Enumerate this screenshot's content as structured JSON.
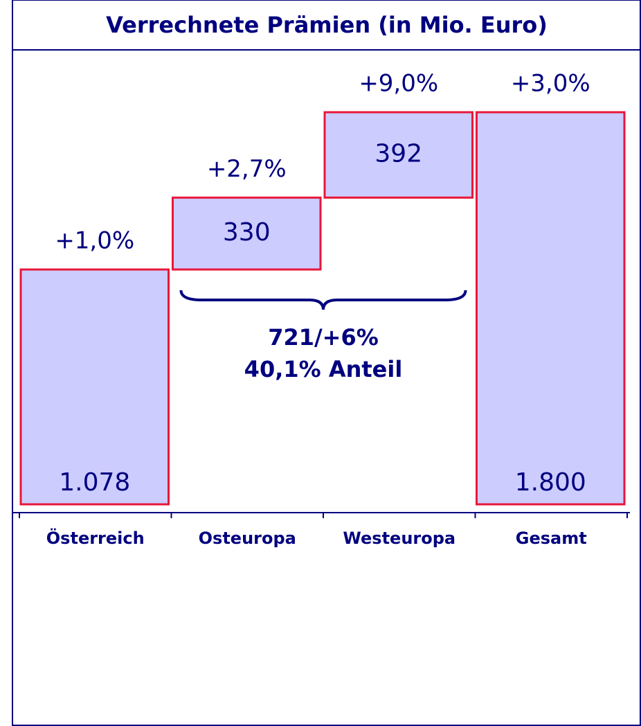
{
  "chart_data": {
    "type": "waterfall",
    "title": "Verrechnete Prämien (in Mio. Euro)",
    "categories": [
      "Österreich",
      "Osteuropa",
      "Westeuropa",
      "Gesamt"
    ],
    "values": [
      1078,
      330,
      392,
      1800
    ],
    "value_labels": [
      "1.078",
      "330",
      "392",
      "1.800"
    ],
    "change_labels": [
      "+1,0%",
      "+2,7%",
      "+9,0%",
      "+3,0%"
    ],
    "measure": [
      "absolute",
      "relative",
      "relative",
      "total"
    ],
    "annotation": [
      "721/+6%",
      "40,1% Anteil"
    ],
    "ylim": [
      0,
      1800
    ],
    "color": "#ccccff",
    "edge_color": "#e8173a",
    "text_color": "#00007f"
  }
}
